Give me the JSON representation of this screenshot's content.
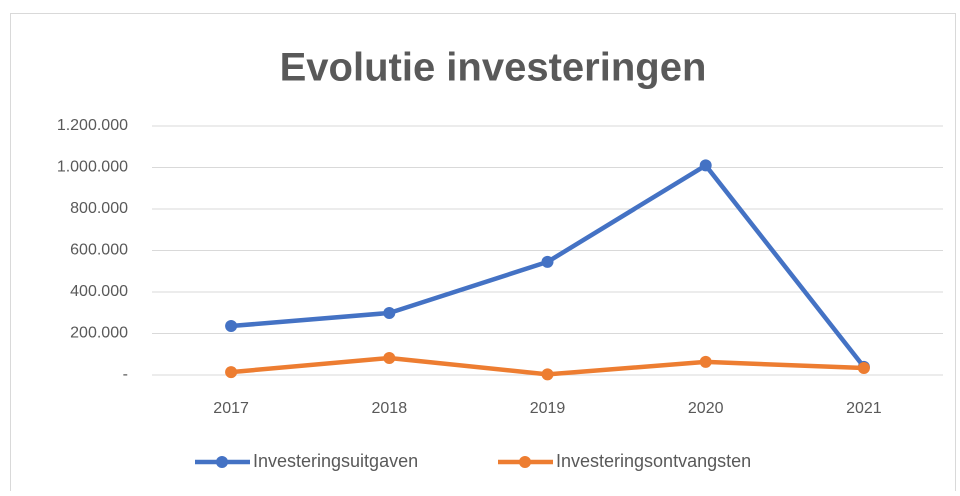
{
  "chart_data": {
    "type": "line",
    "title": "Evolutie investeringen",
    "categories": [
      "2017",
      "2018",
      "2019",
      "2020",
      "2021"
    ],
    "series": [
      {
        "name": "Investeringsuitgaven",
        "color": "#4472c4",
        "values": [
          236000,
          299000,
          545000,
          1010000,
          39000
        ]
      },
      {
        "name": "Investeringsontvangsten",
        "color": "#ed7d31",
        "values": [
          14000,
          82000,
          3000,
          63000,
          34000
        ]
      }
    ],
    "ylim": [
      0,
      1200000
    ],
    "yticks": [
      {
        "value": 0,
        "label": "-"
      },
      {
        "value": 200000,
        "label": "200.000"
      },
      {
        "value": 400000,
        "label": "400.000"
      },
      {
        "value": 600000,
        "label": "600.000"
      },
      {
        "value": 800000,
        "label": "800.000"
      },
      {
        "value": 1000000,
        "label": "1.000.000"
      },
      {
        "value": 1200000,
        "label": "1.200.000"
      }
    ],
    "grid": true,
    "legend": "bottom"
  }
}
